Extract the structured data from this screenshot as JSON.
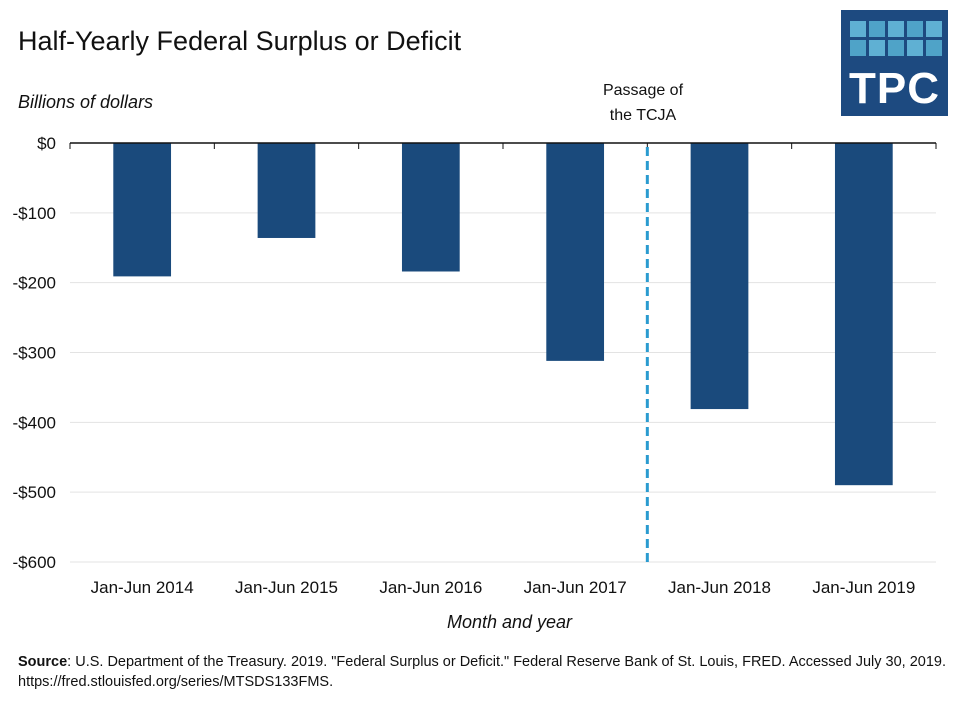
{
  "chart_data": {
    "type": "bar",
    "title": "Half-Yearly Federal Surplus or Deficit",
    "ylabel": "Billions of dollars",
    "xlabel": "Month and year",
    "categories": [
      "Jan-Jun 2014",
      "Jan-Jun 2015",
      "Jan-Jun 2016",
      "Jan-Jun 2017",
      "Jan-Jun 2018",
      "Jan-Jun 2019"
    ],
    "values": [
      -191,
      -136,
      -184,
      -312,
      -381,
      -490
    ],
    "ylim": [
      -600,
      0
    ],
    "yticks": [
      0,
      -100,
      -200,
      -300,
      -400,
      -500,
      -600
    ],
    "ytick_labels": [
      "$0",
      "-$100",
      "-$200",
      "-$300",
      "-$400",
      "-$500",
      "-$600"
    ],
    "grid": true,
    "bar_color": "#1a4a7c",
    "annotation": {
      "line1": "Passage of",
      "line2": "the TCJA",
      "position_between": [
        "Jan-Jun 2017",
        "Jan-Jun 2018"
      ],
      "color": "#2a9bd0",
      "style": "dashed"
    }
  },
  "logo": {
    "text": "TPC"
  },
  "source": {
    "label": "Source",
    "text": ": U.S. Department of the Treasury. 2019. \"Federal Surplus or Deficit.\" Federal Reserve Bank of St. Louis, FRED. Accessed July 30, 2019. https://fred.stlouisfed.org/series/MTSDS133FMS."
  }
}
